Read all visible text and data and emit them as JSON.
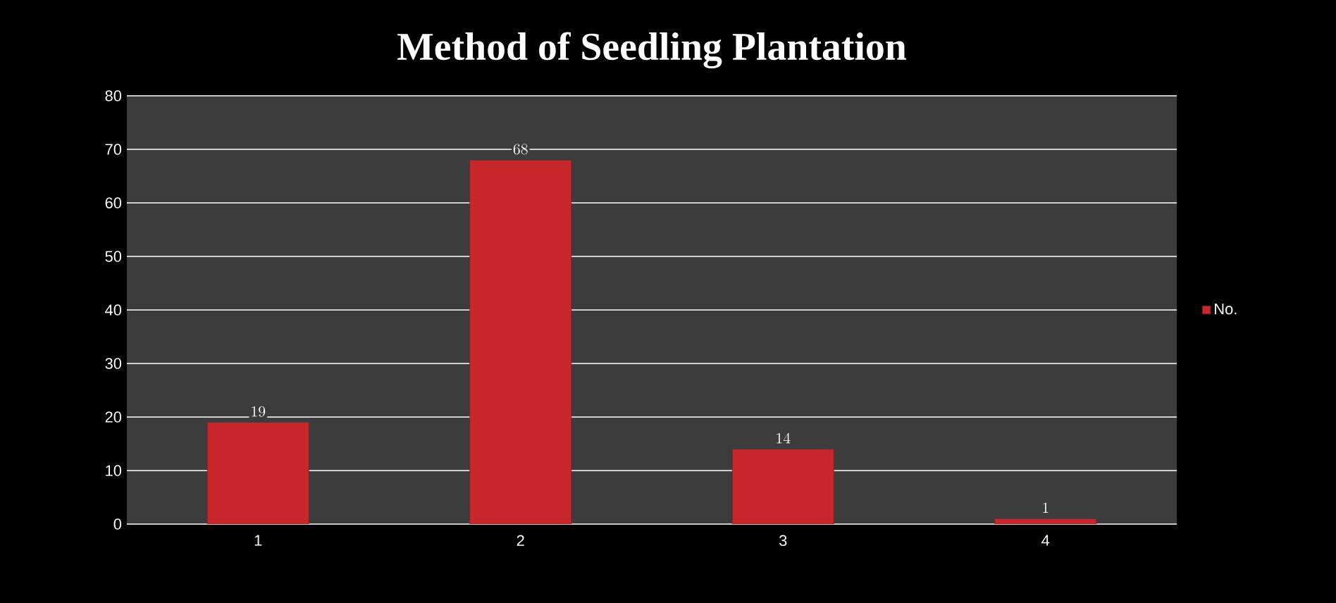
{
  "chart_data": {
    "type": "bar",
    "title": "Method of Seedling Plantation",
    "categories": [
      "1",
      "2",
      "3",
      "4"
    ],
    "series": [
      {
        "name": "No.",
        "color": "#c8282c",
        "values": [
          19,
          68,
          14,
          1
        ]
      }
    ],
    "ylim": [
      0,
      80
    ],
    "yticks": [
      0,
      10,
      20,
      30,
      40,
      50,
      60,
      70,
      80
    ],
    "grid": "y",
    "legend": "right",
    "data_labels": true
  }
}
